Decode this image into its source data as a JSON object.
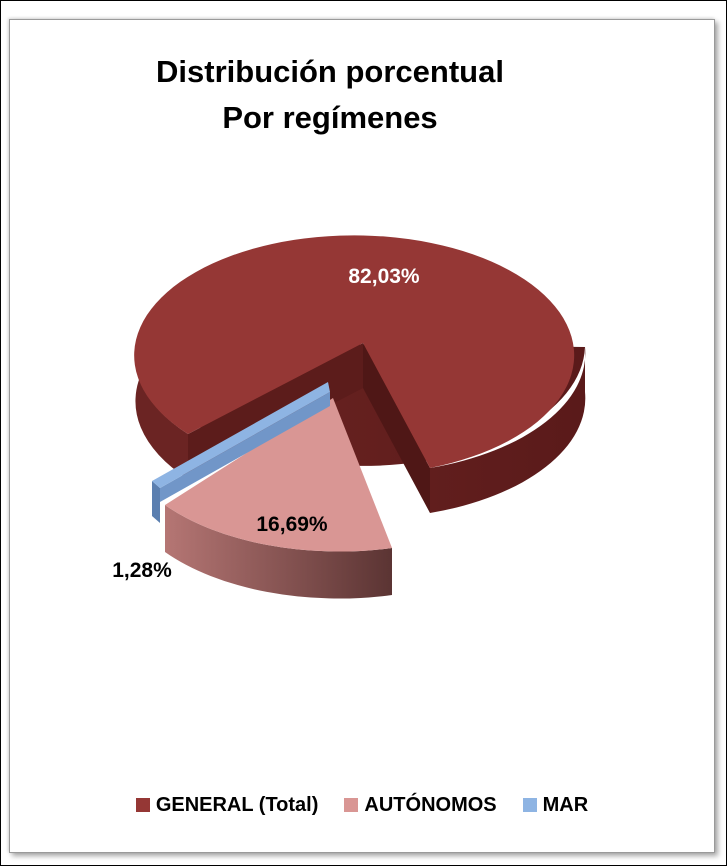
{
  "chart_data": {
    "type": "pie",
    "title": "Distribución porcentual",
    "subtitle": "Por regímenes",
    "series": [
      {
        "name": "GENERAL (Total)",
        "value": 82.03,
        "label": "82,03%",
        "color": "#953735",
        "side": "#5e1e1e"
      },
      {
        "name": "AUTÓNOMOS",
        "value": 16.69,
        "label": "16,69%",
        "color": "#d99694",
        "side": "#8a4d4c"
      },
      {
        "name": "MAR",
        "value": 1.28,
        "label": "1,28%",
        "color": "#8eb4e3",
        "side": "#5577a8"
      }
    ],
    "legend_position": "bottom"
  }
}
